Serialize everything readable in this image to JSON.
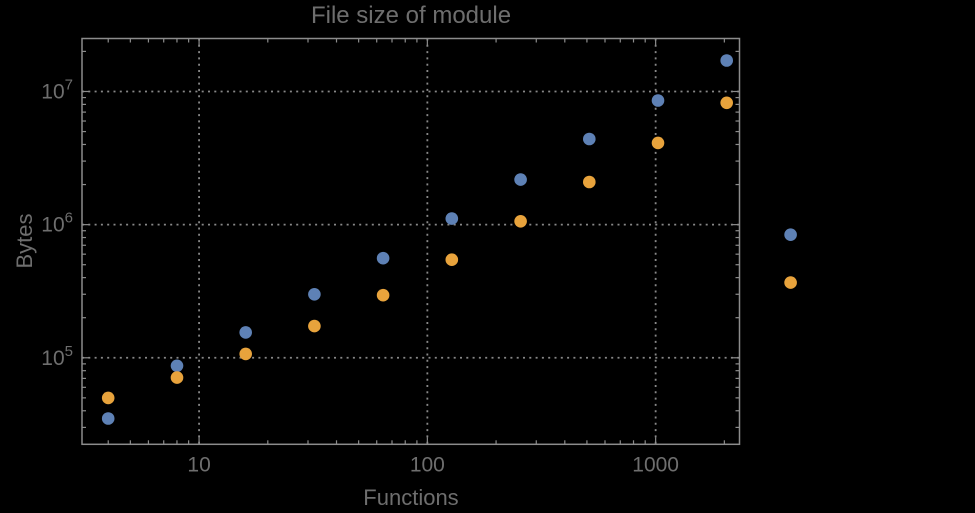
{
  "chart_data": {
    "type": "scatter",
    "title": "File size of module",
    "xlabel": "Functions",
    "ylabel": "Bytes",
    "x_scale": "log",
    "y_scale": "log",
    "xlim": [
      3.07,
      2330
    ],
    "ylim": [
      22400,
      25000000
    ],
    "grid": "major-dotted",
    "legend_position": "none",
    "clip_points": false,
    "x_major_ticks": [
      {
        "value": 10,
        "label": "10"
      },
      {
        "value": 100,
        "label": "100"
      },
      {
        "value": 1000,
        "label": "1000"
      }
    ],
    "y_major_ticks": [
      {
        "value": 100000,
        "label": "10^5"
      },
      {
        "value": 1000000,
        "label": "10^6"
      },
      {
        "value": 10000000,
        "label": "10^7"
      }
    ],
    "series": [
      {
        "name": "series-blue",
        "color": "#5E81B5",
        "points": [
          [
            4,
            35000
          ],
          [
            8,
            87000
          ],
          [
            16,
            155000
          ],
          [
            32,
            300000
          ],
          [
            64,
            560000
          ],
          [
            128,
            1110000
          ],
          [
            256,
            2180000
          ],
          [
            512,
            4400000
          ],
          [
            1024,
            8560000
          ],
          [
            2048,
            17100000
          ],
          [
            3900,
            840000
          ]
        ]
      },
      {
        "name": "series-orange",
        "color": "#E8A33C",
        "points": [
          [
            4,
            50000
          ],
          [
            8,
            71000
          ],
          [
            16,
            107000
          ],
          [
            32,
            173000
          ],
          [
            64,
            295000
          ],
          [
            128,
            545000
          ],
          [
            256,
            1060000
          ],
          [
            512,
            2090000
          ],
          [
            1024,
            4110000
          ],
          [
            2048,
            8220000
          ],
          [
            3900,
            367000
          ]
        ]
      }
    ],
    "colors": {
      "background": "#000000",
      "frame": "#8C8C8C",
      "grid": "#888888",
      "text": "#6E6E6E"
    }
  }
}
